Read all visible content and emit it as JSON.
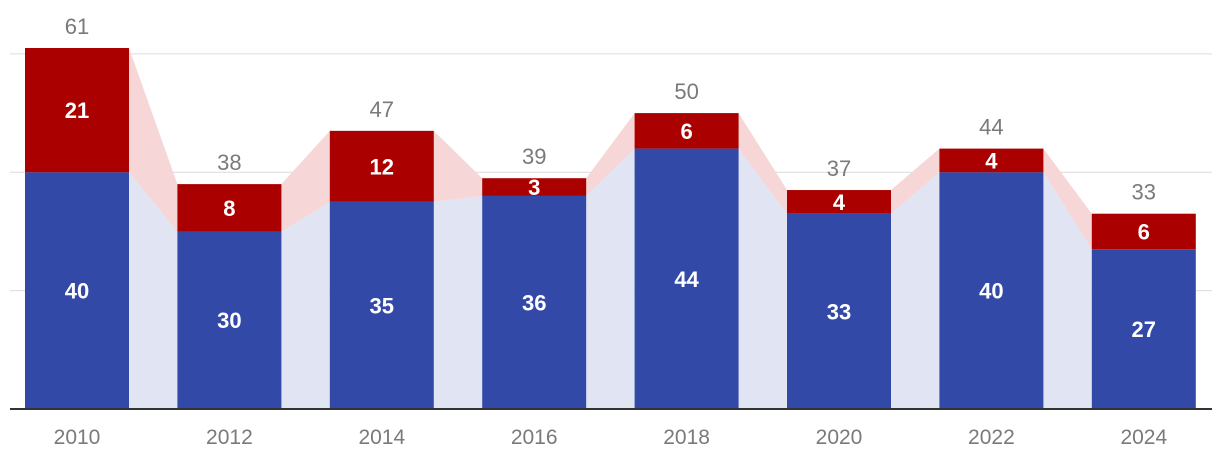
{
  "chart_data": {
    "type": "bar",
    "stacked": true,
    "categories": [
      "2010",
      "2012",
      "2014",
      "2016",
      "2018",
      "2020",
      "2022",
      "2024"
    ],
    "series": [
      {
        "values": [
          40,
          30,
          35,
          36,
          44,
          33,
          40,
          27
        ],
        "color": "#3349a8",
        "band_color": "#e1e4f3"
      },
      {
        "values": [
          21,
          8,
          12,
          3,
          6,
          4,
          4,
          6
        ],
        "color": "#aa0000",
        "band_color": "#f6d6d6"
      }
    ],
    "totals": [
      61,
      38,
      47,
      39,
      50,
      37,
      44,
      33
    ],
    "ylim": [
      0,
      61
    ],
    "grid": true,
    "title": "",
    "xlabel": "",
    "ylabel": ""
  }
}
